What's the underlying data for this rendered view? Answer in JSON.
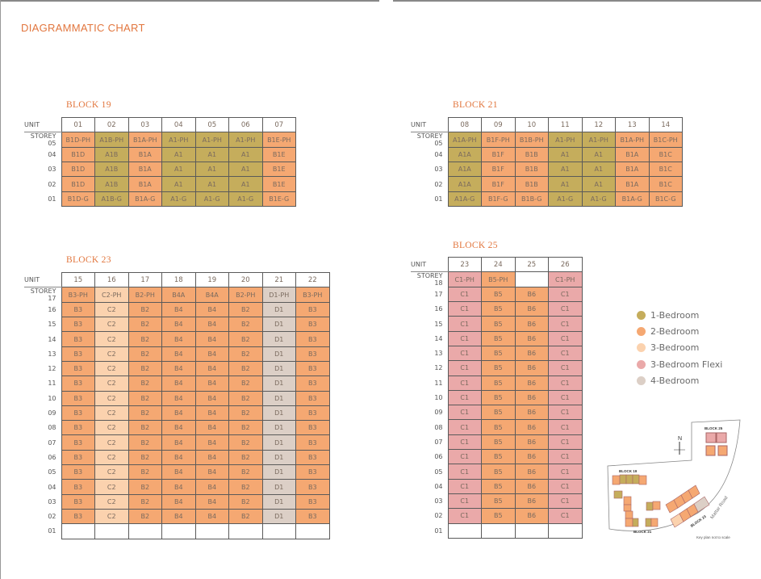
{
  "title": "DIAGRAMMATIC CHART",
  "colors": {
    "1-Bedroom": "#c5ad5c",
    "2-Bedroom": "#f5a872",
    "3-Bedroom": "#fbd2ae",
    "3-Bedroom Flexi": "#eaa9a9",
    "4-Bedroom": "#dccfc6",
    "empty": "#ffffff"
  },
  "labels": {
    "unit": "UNIT",
    "storey": "STOREY"
  },
  "blocks": [
    {
      "name": "BLOCK 19",
      "units": [
        "01",
        "02",
        "03",
        "04",
        "05",
        "06",
        "07"
      ],
      "types": [
        "2-Bedroom",
        "1-Bedroom",
        "2-Bedroom",
        "1-Bedroom",
        "1-Bedroom",
        "1-Bedroom",
        "2-Bedroom"
      ],
      "rows": [
        {
          "storey": "05",
          "cells": [
            "B1D-PH",
            "A1B-PH",
            "B1A-PH",
            "A1-PH",
            "A1-PH",
            "A1-PH",
            "B1E-PH"
          ]
        },
        {
          "storey": "04",
          "cells": [
            "B1D",
            "A1B",
            "B1A",
            "A1",
            "A1",
            "A1",
            "B1E"
          ]
        },
        {
          "storey": "03",
          "cells": [
            "B1D",
            "A1B",
            "B1A",
            "A1",
            "A1",
            "A1",
            "B1E"
          ]
        },
        {
          "storey": "02",
          "cells": [
            "B1D",
            "A1B",
            "B1A",
            "A1",
            "A1",
            "A1",
            "B1E"
          ]
        },
        {
          "storey": "01",
          "cells": [
            "B1D-G",
            "A1B-G",
            "B1A-G",
            "A1-G",
            "A1-G",
            "A1-G",
            "B1E-G"
          ]
        }
      ]
    },
    {
      "name": "BLOCK 21",
      "units": [
        "08",
        "09",
        "10",
        "11",
        "12",
        "13",
        "14"
      ],
      "types": [
        "1-Bedroom",
        "2-Bedroom",
        "2-Bedroom",
        "1-Bedroom",
        "1-Bedroom",
        "2-Bedroom",
        "2-Bedroom"
      ],
      "rows": [
        {
          "storey": "05",
          "cells": [
            "A1A-PH",
            "B1F-PH",
            "B1B-PH",
            "A1-PH",
            "A1-PH",
            "B1A-PH",
            "B1C-PH"
          ]
        },
        {
          "storey": "04",
          "cells": [
            "A1A",
            "B1F",
            "B1B",
            "A1",
            "A1",
            "B1A",
            "B1C"
          ]
        },
        {
          "storey": "03",
          "cells": [
            "A1A",
            "B1F",
            "B1B",
            "A1",
            "A1",
            "B1A",
            "B1C"
          ]
        },
        {
          "storey": "02",
          "cells": [
            "A1A",
            "B1F",
            "B1B",
            "A1",
            "A1",
            "B1A",
            "B1C"
          ]
        },
        {
          "storey": "01",
          "cells": [
            "A1A-G",
            "B1F-G",
            "B1B-G",
            "A1-G",
            "A1-G",
            "B1A-G",
            "B1C-G"
          ]
        }
      ]
    },
    {
      "name": "BLOCK 23",
      "units": [
        "15",
        "16",
        "17",
        "18",
        "19",
        "20",
        "21",
        "22"
      ],
      "types": [
        "2-Bedroom",
        "3-Bedroom",
        "2-Bedroom",
        "2-Bedroom",
        "2-Bedroom",
        "2-Bedroom",
        "4-Bedroom",
        "2-Bedroom"
      ],
      "rows": [
        {
          "storey": "17",
          "cells": [
            "B3-PH",
            "C2-PH",
            "B2-PH",
            "B4A",
            "B4A",
            "B2-PH",
            "D1-PH",
            "B3-PH"
          ]
        },
        {
          "storey": "16",
          "cells": [
            "B3",
            "C2",
            "B2",
            "B4",
            "B4",
            "B2",
            "D1",
            "B3"
          ]
        },
        {
          "storey": "15",
          "cells": [
            "B3",
            "C2",
            "B2",
            "B4",
            "B4",
            "B2",
            "D1",
            "B3"
          ]
        },
        {
          "storey": "14",
          "cells": [
            "B3",
            "C2",
            "B2",
            "B4",
            "B4",
            "B2",
            "D1",
            "B3"
          ]
        },
        {
          "storey": "13",
          "cells": [
            "B3",
            "C2",
            "B2",
            "B4",
            "B4",
            "B2",
            "D1",
            "B3"
          ]
        },
        {
          "storey": "12",
          "cells": [
            "B3",
            "C2",
            "B2",
            "B4",
            "B4",
            "B2",
            "D1",
            "B3"
          ]
        },
        {
          "storey": "11",
          "cells": [
            "B3",
            "C2",
            "B2",
            "B4",
            "B4",
            "B2",
            "D1",
            "B3"
          ]
        },
        {
          "storey": "10",
          "cells": [
            "B3",
            "C2",
            "B2",
            "B4",
            "B4",
            "B2",
            "D1",
            "B3"
          ]
        },
        {
          "storey": "09",
          "cells": [
            "B3",
            "C2",
            "B2",
            "B4",
            "B4",
            "B2",
            "D1",
            "B3"
          ]
        },
        {
          "storey": "08",
          "cells": [
            "B3",
            "C2",
            "B2",
            "B4",
            "B4",
            "B2",
            "D1",
            "B3"
          ]
        },
        {
          "storey": "07",
          "cells": [
            "B3",
            "C2",
            "B2",
            "B4",
            "B4",
            "B2",
            "D1",
            "B3"
          ]
        },
        {
          "storey": "06",
          "cells": [
            "B3",
            "C2",
            "B2",
            "B4",
            "B4",
            "B2",
            "D1",
            "B3"
          ]
        },
        {
          "storey": "05",
          "cells": [
            "B3",
            "C2",
            "B2",
            "B4",
            "B4",
            "B2",
            "D1",
            "B3"
          ]
        },
        {
          "storey": "04",
          "cells": [
            "B3",
            "C2",
            "B2",
            "B4",
            "B4",
            "B2",
            "D1",
            "B3"
          ]
        },
        {
          "storey": "03",
          "cells": [
            "B3",
            "C2",
            "B2",
            "B4",
            "B4",
            "B2",
            "D1",
            "B3"
          ]
        },
        {
          "storey": "02",
          "cells": [
            "B3",
            "C2",
            "B2",
            "B4",
            "B4",
            "B2",
            "D1",
            "B3"
          ]
        },
        {
          "storey": "01",
          "cells": [
            "",
            "",
            "",
            "",
            "",
            "",
            "",
            ""
          ]
        }
      ]
    },
    {
      "name": "BLOCK 25",
      "units": [
        "23",
        "24",
        "25",
        "26"
      ],
      "types": [
        "3-Bedroom Flexi",
        "2-Bedroom",
        "2-Bedroom",
        "3-Bedroom Flexi"
      ],
      "rows": [
        {
          "storey": "18",
          "cells": [
            "C1-PH",
            "B5-PH",
            "",
            "C1-PH"
          ]
        },
        {
          "storey": "17",
          "cells": [
            "C1",
            "B5",
            "B6",
            "C1"
          ]
        },
        {
          "storey": "16",
          "cells": [
            "C1",
            "B5",
            "B6",
            "C1"
          ]
        },
        {
          "storey": "15",
          "cells": [
            "C1",
            "B5",
            "B6",
            "C1"
          ]
        },
        {
          "storey": "14",
          "cells": [
            "C1",
            "B5",
            "B6",
            "C1"
          ]
        },
        {
          "storey": "13",
          "cells": [
            "C1",
            "B5",
            "B6",
            "C1"
          ]
        },
        {
          "storey": "12",
          "cells": [
            "C1",
            "B5",
            "B6",
            "C1"
          ]
        },
        {
          "storey": "11",
          "cells": [
            "C1",
            "B5",
            "B6",
            "C1"
          ]
        },
        {
          "storey": "10",
          "cells": [
            "C1",
            "B5",
            "B6",
            "C1"
          ]
        },
        {
          "storey": "09",
          "cells": [
            "C1",
            "B5",
            "B6",
            "C1"
          ]
        },
        {
          "storey": "08",
          "cells": [
            "C1",
            "B5",
            "B6",
            "C1"
          ]
        },
        {
          "storey": "07",
          "cells": [
            "C1",
            "B5",
            "B6",
            "C1"
          ]
        },
        {
          "storey": "06",
          "cells": [
            "C1",
            "B5",
            "B6",
            "C1"
          ]
        },
        {
          "storey": "05",
          "cells": [
            "C1",
            "B5",
            "B6",
            "C1"
          ]
        },
        {
          "storey": "04",
          "cells": [
            "C1",
            "B5",
            "B6",
            "C1"
          ]
        },
        {
          "storey": "03",
          "cells": [
            "C1",
            "B5",
            "B6",
            "C1"
          ]
        },
        {
          "storey": "02",
          "cells": [
            "C1",
            "B5",
            "B6",
            "C1"
          ]
        },
        {
          "storey": "01",
          "cells": [
            "",
            "",
            "",
            ""
          ]
        }
      ]
    }
  ],
  "legend": [
    "1-Bedroom",
    "2-Bedroom",
    "3-Bedroom",
    "3-Bedroom Flexi",
    "4-Bedroom"
  ],
  "keyplan": {
    "north": "N",
    "block19": "BLOCK 19",
    "block21": "BLOCK 21",
    "block23": "BLOCK 23",
    "block25": "BLOCK 25",
    "road": "Mattar Road",
    "note": "Key plan not to scale"
  }
}
